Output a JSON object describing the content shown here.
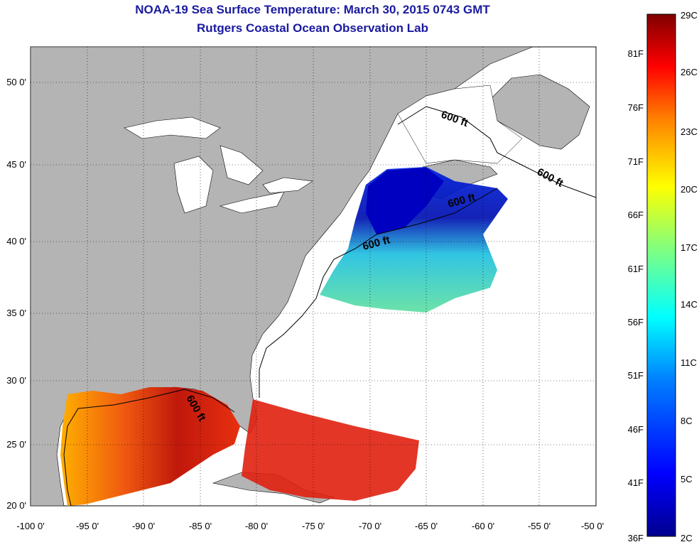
{
  "header": {
    "title": "NOAA-19 Sea Surface Temperature:  March 30, 2015 0743 GMT",
    "subtitle": "Rutgers Coastal Ocean Observation Lab"
  },
  "map": {
    "lon_range": [
      -100,
      -50
    ],
    "lat_range": [
      20,
      52.5
    ],
    "lon_ticks": [
      "-100 0'",
      "-95 0'",
      "-90 0'",
      "-85 0'",
      "-80 0'",
      "-75 0'",
      "-70 0'",
      "-65 0'",
      "-60 0'",
      "-55 0'",
      "-50 0'"
    ],
    "lat_ticks": [
      "20 0'",
      "25 0'",
      "30 0'",
      "35 0'",
      "40 0'",
      "45 0'",
      "50 0'"
    ],
    "grid": "dotted",
    "land_color": "#b4b4b4",
    "no_data_color": "#ffffff",
    "contour_labels": [
      "600 ft",
      "600 ft",
      "600 ft",
      "600 ft",
      "600 ft"
    ]
  },
  "colorbar": {
    "celsius_labels": [
      "29C",
      "26C",
      "23C",
      "20C",
      "17C",
      "14C",
      "11C",
      "8C",
      "5C",
      "2C"
    ],
    "fahrenheit_labels": [
      "81F",
      "76F",
      "71F",
      "66F",
      "61F",
      "56F",
      "51F",
      "46F",
      "41F",
      "36F"
    ],
    "colors": [
      "#00008f",
      "#0000ff",
      "#0080ff",
      "#00ffff",
      "#80ff80",
      "#ffff00",
      "#ff8000",
      "#ff0000",
      "#800000"
    ]
  }
}
